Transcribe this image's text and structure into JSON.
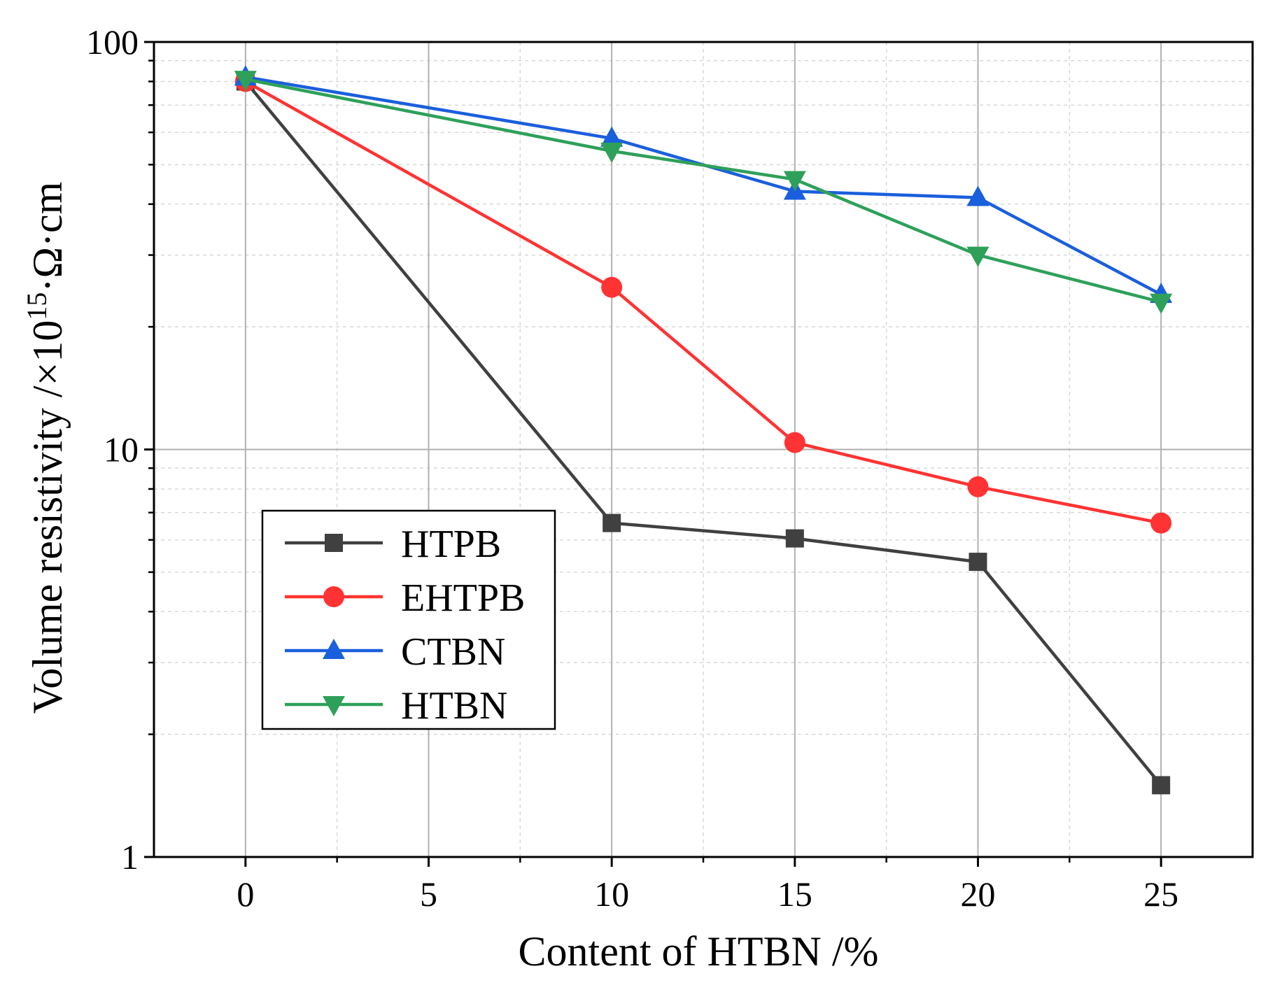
{
  "chart_data": {
    "type": "line",
    "title": "",
    "xlabel": "Content of HTBN /%",
    "ylabel_main": "Volume resistivity /×10",
    "ylabel_sup": "15",
    "ylabel_tail": "·Ω·cm",
    "yscale": "log",
    "xlim": [
      -2.5,
      27.5
    ],
    "ylim": [
      1,
      100
    ],
    "x_ticks": [
      0,
      5,
      10,
      15,
      20,
      25
    ],
    "x_tick_labels": [
      "0",
      "5",
      "10",
      "15",
      "20",
      "25"
    ],
    "y_ticks": [
      1,
      10,
      100
    ],
    "y_tick_labels": [
      "1",
      "10",
      "100"
    ],
    "grid": true,
    "legend_position": "lower-left",
    "series": [
      {
        "name": "HTPB",
        "color": "#404040",
        "marker": "square",
        "x": [
          0,
          10,
          15,
          20,
          25
        ],
        "y": [
          80,
          6.6,
          6.05,
          5.3,
          1.5
        ]
      },
      {
        "name": "EHTPB",
        "color": "#ff3333",
        "marker": "circle",
        "x": [
          0,
          10,
          15,
          20,
          25
        ],
        "y": [
          80,
          25,
          10.4,
          8.1,
          6.6
        ]
      },
      {
        "name": "CTBN",
        "color": "#1a5fdc",
        "marker": "triangle-up",
        "x": [
          0,
          10,
          15,
          20,
          25
        ],
        "y": [
          82,
          58,
          43,
          41.5,
          24
        ]
      },
      {
        "name": "HTBN",
        "color": "#2ea05a",
        "marker": "triangle-down",
        "x": [
          0,
          10,
          15,
          20,
          25
        ],
        "y": [
          81,
          54,
          46,
          30,
          23
        ]
      }
    ]
  }
}
